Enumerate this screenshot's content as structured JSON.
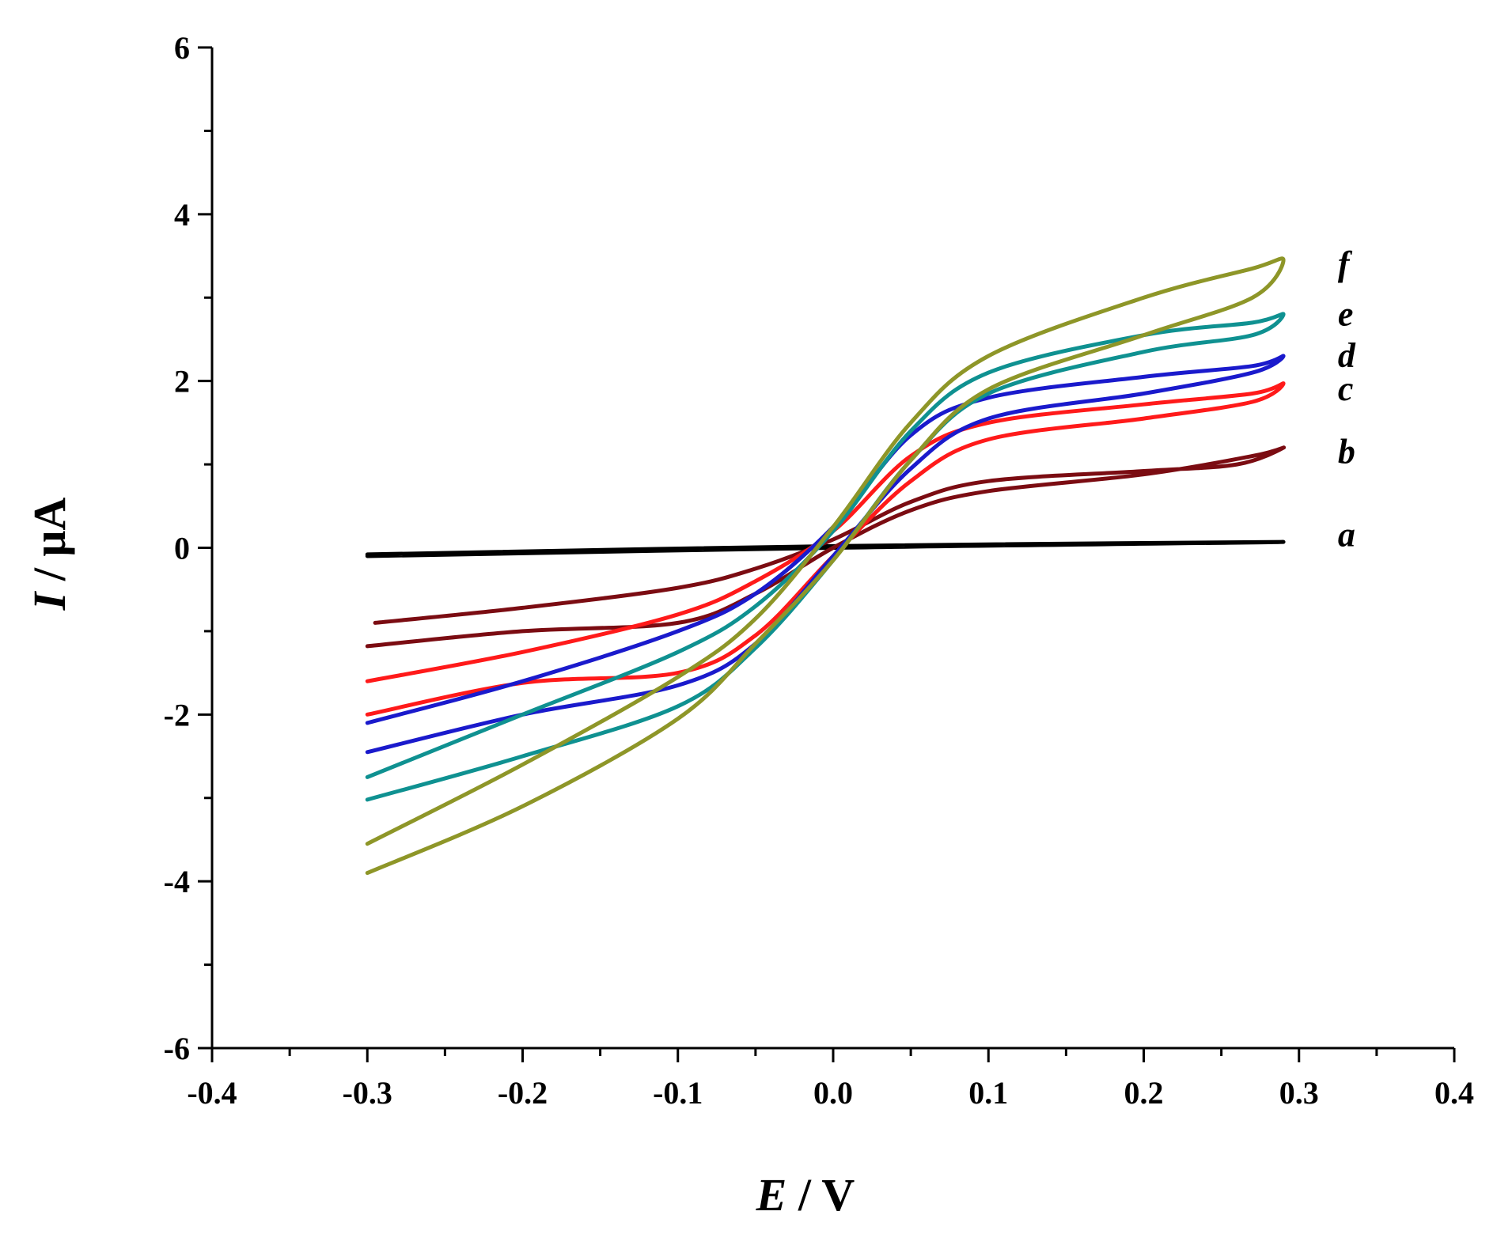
{
  "chart_data": {
    "type": "line",
    "title": "",
    "xlabel": {
      "symbol": "E",
      "unit": " / V"
    },
    "ylabel": {
      "symbol": "I",
      "unit": " / μA"
    },
    "xlim": [
      -0.4,
      0.4
    ],
    "ylim": [
      -6,
      6
    ],
    "x_ticks": [
      -0.4,
      -0.3,
      -0.2,
      -0.1,
      0.0,
      0.1,
      0.2,
      0.3,
      0.4
    ],
    "x_tick_labels": [
      "-0.4",
      "-0.3",
      "-0.2",
      "-0.1",
      "0.0",
      "0.1",
      "0.2",
      "0.3",
      "0.4"
    ],
    "y_ticks": [
      -6,
      -4,
      -2,
      0,
      2,
      4,
      6
    ],
    "y_tick_labels": [
      "-6",
      "-4",
      "-2",
      "0",
      "2",
      "4",
      "6"
    ],
    "series": [
      {
        "name": "a",
        "color": "#000000",
        "values": [
          [
            -0.3,
            -0.1
          ],
          [
            0.0,
            0.0
          ],
          [
            0.29,
            0.07
          ],
          [
            0.0,
            0.02
          ],
          [
            -0.3,
            -0.08
          ]
        ]
      },
      {
        "name": "b",
        "color": "#7b0c12",
        "values": [
          [
            -0.295,
            -0.9
          ],
          [
            -0.2,
            -0.72
          ],
          [
            -0.1,
            -0.48
          ],
          [
            -0.05,
            -0.25
          ],
          [
            0.0,
            0.1
          ],
          [
            0.05,
            0.55
          ],
          [
            0.1,
            0.8
          ],
          [
            0.2,
            0.92
          ],
          [
            0.26,
            1.0
          ],
          [
            0.29,
            1.2
          ],
          [
            0.27,
            1.1
          ],
          [
            0.2,
            0.88
          ],
          [
            0.1,
            0.68
          ],
          [
            0.05,
            0.45
          ],
          [
            0.0,
            0.0
          ],
          [
            -0.05,
            -0.55
          ],
          [
            -0.1,
            -0.9
          ],
          [
            -0.2,
            -1.0
          ],
          [
            -0.3,
            -1.18
          ]
        ]
      },
      {
        "name": "c",
        "color": "#ff1a1a",
        "values": [
          [
            -0.3,
            -1.6
          ],
          [
            -0.2,
            -1.25
          ],
          [
            -0.1,
            -0.8
          ],
          [
            -0.05,
            -0.4
          ],
          [
            0.0,
            0.2
          ],
          [
            0.05,
            1.1
          ],
          [
            0.1,
            1.5
          ],
          [
            0.2,
            1.72
          ],
          [
            0.27,
            1.85
          ],
          [
            0.29,
            1.97
          ],
          [
            0.27,
            1.75
          ],
          [
            0.2,
            1.55
          ],
          [
            0.1,
            1.3
          ],
          [
            0.05,
            0.8
          ],
          [
            0.0,
            -0.1
          ],
          [
            -0.05,
            -1.05
          ],
          [
            -0.1,
            -1.5
          ],
          [
            -0.2,
            -1.62
          ],
          [
            -0.3,
            -2.0
          ]
        ]
      },
      {
        "name": "d",
        "color": "#1a1acc",
        "values": [
          [
            -0.3,
            -2.1
          ],
          [
            -0.2,
            -1.6
          ],
          [
            -0.1,
            -1.0
          ],
          [
            -0.05,
            -0.55
          ],
          [
            0.0,
            0.25
          ],
          [
            0.05,
            1.35
          ],
          [
            0.1,
            1.8
          ],
          [
            0.2,
            2.05
          ],
          [
            0.27,
            2.18
          ],
          [
            0.29,
            2.3
          ],
          [
            0.27,
            2.1
          ],
          [
            0.2,
            1.85
          ],
          [
            0.1,
            1.55
          ],
          [
            0.05,
            0.95
          ],
          [
            0.0,
            -0.1
          ],
          [
            -0.05,
            -1.15
          ],
          [
            -0.1,
            -1.65
          ],
          [
            -0.2,
            -2.0
          ],
          [
            -0.3,
            -2.45
          ]
        ]
      },
      {
        "name": "e",
        "color": "#0f9191",
        "values": [
          [
            -0.3,
            -2.75
          ],
          [
            -0.2,
            -2.0
          ],
          [
            -0.1,
            -1.25
          ],
          [
            -0.05,
            -0.7
          ],
          [
            0.0,
            0.2
          ],
          [
            0.05,
            1.4
          ],
          [
            0.1,
            2.1
          ],
          [
            0.2,
            2.55
          ],
          [
            0.27,
            2.7
          ],
          [
            0.29,
            2.8
          ],
          [
            0.27,
            2.55
          ],
          [
            0.2,
            2.35
          ],
          [
            0.1,
            1.85
          ],
          [
            0.05,
            1.05
          ],
          [
            0.0,
            -0.15
          ],
          [
            -0.05,
            -1.2
          ],
          [
            -0.1,
            -1.9
          ],
          [
            -0.2,
            -2.5
          ],
          [
            -0.3,
            -3.02
          ]
        ]
      },
      {
        "name": "f",
        "color": "#8e9628",
        "values": [
          [
            -0.3,
            -3.55
          ],
          [
            -0.2,
            -2.6
          ],
          [
            -0.1,
            -1.55
          ],
          [
            -0.05,
            -0.85
          ],
          [
            0.0,
            0.25
          ],
          [
            0.05,
            1.5
          ],
          [
            0.1,
            2.3
          ],
          [
            0.2,
            3.0
          ],
          [
            0.27,
            3.35
          ],
          [
            0.29,
            3.45
          ],
          [
            0.27,
            3.0
          ],
          [
            0.2,
            2.55
          ],
          [
            0.1,
            1.9
          ],
          [
            0.05,
            1.05
          ],
          [
            0.0,
            -0.15
          ],
          [
            -0.05,
            -1.15
          ],
          [
            -0.1,
            -2.05
          ],
          [
            -0.2,
            -3.1
          ],
          [
            -0.3,
            -3.9
          ]
        ]
      }
    ],
    "curve_labels": [
      {
        "text": "a",
        "x": 0.325,
        "y": 0.15
      },
      {
        "text": "b",
        "x": 0.325,
        "y": 1.15
      },
      {
        "text": "c",
        "x": 0.325,
        "y": 1.9
      },
      {
        "text": "d",
        "x": 0.325,
        "y": 2.3
      },
      {
        "text": "e",
        "x": 0.325,
        "y": 2.8
      },
      {
        "text": "f",
        "x": 0.325,
        "y": 3.4
      }
    ]
  }
}
